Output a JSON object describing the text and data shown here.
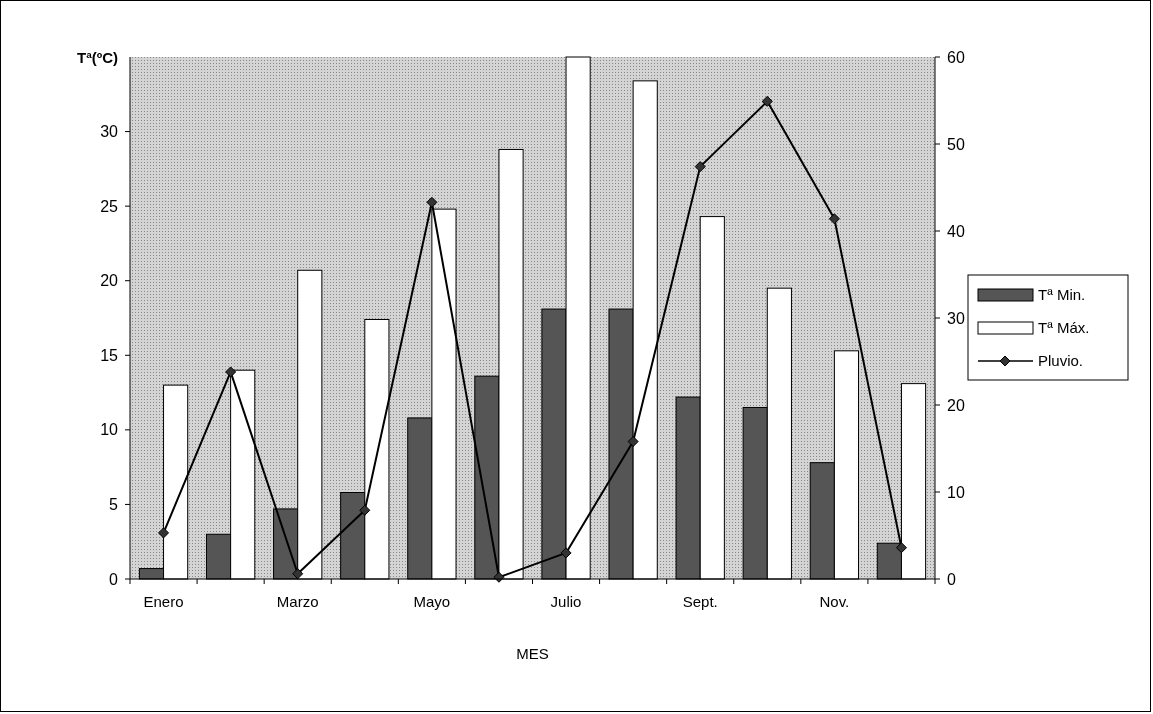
{
  "chart_data": {
    "type": "bar",
    "ylabel": "Tª(ºC)",
    "xlabel": "MES",
    "categories": [
      "Enero",
      null,
      "Marzo",
      null,
      "Mayo",
      null,
      "Julio",
      null,
      "Sept.",
      null,
      "Nov.",
      null
    ],
    "series": [
      {
        "name": "Tª Min.",
        "color": "#555555",
        "values": [
          0.7,
          3.0,
          4.7,
          5.8,
          10.8,
          13.6,
          18.1,
          18.1,
          12.2,
          11.5,
          7.8,
          2.4
        ]
      },
      {
        "name": "Tª Máx.",
        "color": "#ffffff",
        "values": [
          13.0,
          14.0,
          20.7,
          17.4,
          24.8,
          28.8,
          35.0,
          33.4,
          24.3,
          19.5,
          15.3,
          13.1
        ]
      },
      {
        "name": "Pluvio.",
        "type": "line",
        "axis": "y2",
        "color": "#000000",
        "values": [
          5.3,
          23.8,
          0.6,
          7.9,
          43.3,
          0.2,
          3.0,
          15.8,
          47.4,
          54.9,
          41.4,
          3.6
        ]
      }
    ],
    "ylim": [
      0,
      35
    ],
    "yticks": [
      0,
      5,
      10,
      15,
      20,
      25,
      30
    ],
    "y2lim": [
      0,
      60
    ],
    "y2ticks": [
      0,
      10,
      20,
      30,
      40,
      50,
      60
    ],
    "marker": "diamond",
    "legend": "right",
    "grid": false
  }
}
